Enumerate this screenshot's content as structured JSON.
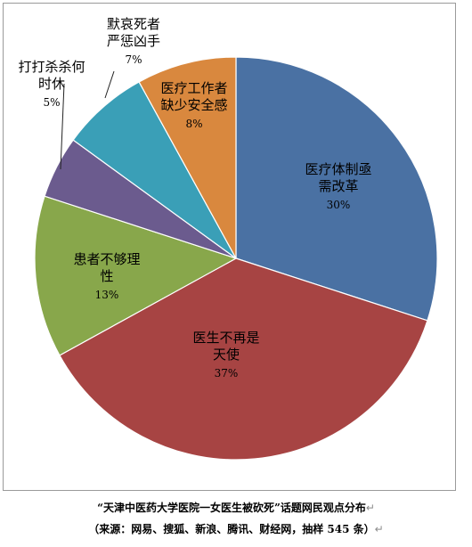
{
  "chart_data": {
    "type": "pie",
    "slices": [
      {
        "label_lines": [
          "医疗体制亟",
          "需改革"
        ],
        "value": 30,
        "value_label": "30%",
        "color": "#4a71a3"
      },
      {
        "label_lines": [
          "医生不再是",
          "天使"
        ],
        "value": 37,
        "value_label": "37%",
        "color": "#a74443"
      },
      {
        "label_lines": [
          "患者不够理",
          "性"
        ],
        "value": 13,
        "value_label": "13%",
        "color": "#88a74b"
      },
      {
        "label_lines": [
          "打打杀杀何",
          "时休"
        ],
        "value": 5,
        "value_label": "5%",
        "color": "#6b5b8e"
      },
      {
        "label_lines": [
          "默哀死者",
          "严惩凶手"
        ],
        "value": 7,
        "value_label": "7%",
        "color": "#3a9fb7"
      },
      {
        "label_lines": [
          "医疗工作者",
          "缺少安全感"
        ],
        "value": 8,
        "value_label": "8%",
        "color": "#d9883e"
      }
    ]
  },
  "caption": {
    "title": "“天津中医药大学医院一女医生被砍死”话题网民观点分布",
    "source": "（来源：网易、搜狐、新浪、腾讯、财经网，抽样 545 条）",
    "return_mark": "↵"
  }
}
